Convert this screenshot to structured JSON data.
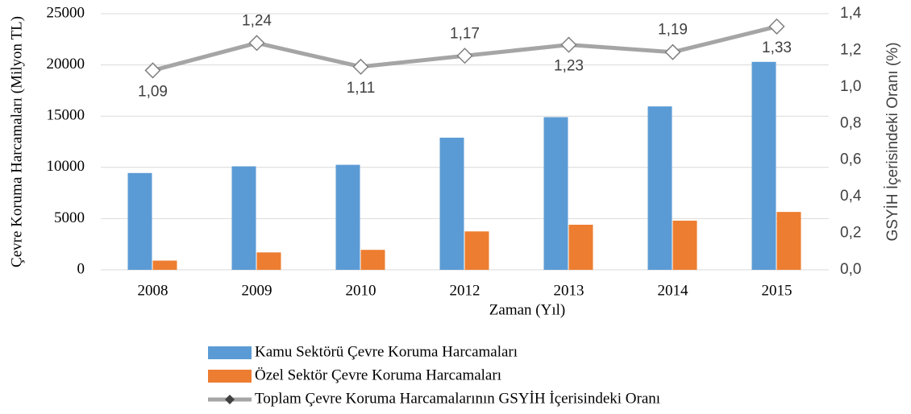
{
  "chart_data": {
    "type": "bar",
    "x_label": "Zaman (Yıl)",
    "y_label": "Çevre Koruma Harcamaları (Milyon TL)",
    "y2_label": "GSYİH İçerisindeki Oranı (%)",
    "categories": [
      "2008",
      "2009",
      "2010",
      "2012",
      "2013",
      "2014",
      "2015"
    ],
    "series": [
      {
        "name": "Kamu Sektörü Çevre Koruma Harcamaları",
        "type": "bar",
        "color": "#5b9bd5",
        "values": [
          9450,
          10100,
          10250,
          12900,
          14900,
          15950,
          20300
        ]
      },
      {
        "name": "Özel Sektör Çevre Koruma Harcamaları",
        "type": "bar",
        "color": "#ed7d31",
        "values": [
          900,
          1700,
          1950,
          3750,
          4400,
          4800,
          5650
        ]
      },
      {
        "name": "Toplam Çevre Koruma Harcamalarının GSYİH İçerisindeki Oranı",
        "type": "line",
        "axis": "y2",
        "color": "#a5a5a5",
        "values": [
          1.09,
          1.24,
          1.11,
          1.17,
          1.23,
          1.19,
          1.33
        ],
        "value_labels": [
          "1,09",
          "1,24",
          "1,11",
          "1,17",
          "1,23",
          "1,19",
          "1,33"
        ]
      }
    ],
    "ylim": [
      0,
      25000
    ],
    "yticks": [
      0,
      5000,
      10000,
      15000,
      20000,
      25000
    ],
    "y2lim": [
      0,
      1.4
    ],
    "y2ticks": [
      {
        "value": 0,
        "label": "0,0"
      },
      {
        "value": 0.2,
        "label": "0,2"
      },
      {
        "value": 0.4,
        "label": "0,4"
      },
      {
        "value": 0.6,
        "label": "0,6"
      },
      {
        "value": 0.8,
        "label": "0,8"
      },
      {
        "value": 1.0,
        "label": "1,0"
      },
      {
        "value": 1.2,
        "label": "1,2"
      },
      {
        "value": 1.4,
        "label": "1,4"
      }
    ],
    "grid": true,
    "legend": "bottom"
  }
}
